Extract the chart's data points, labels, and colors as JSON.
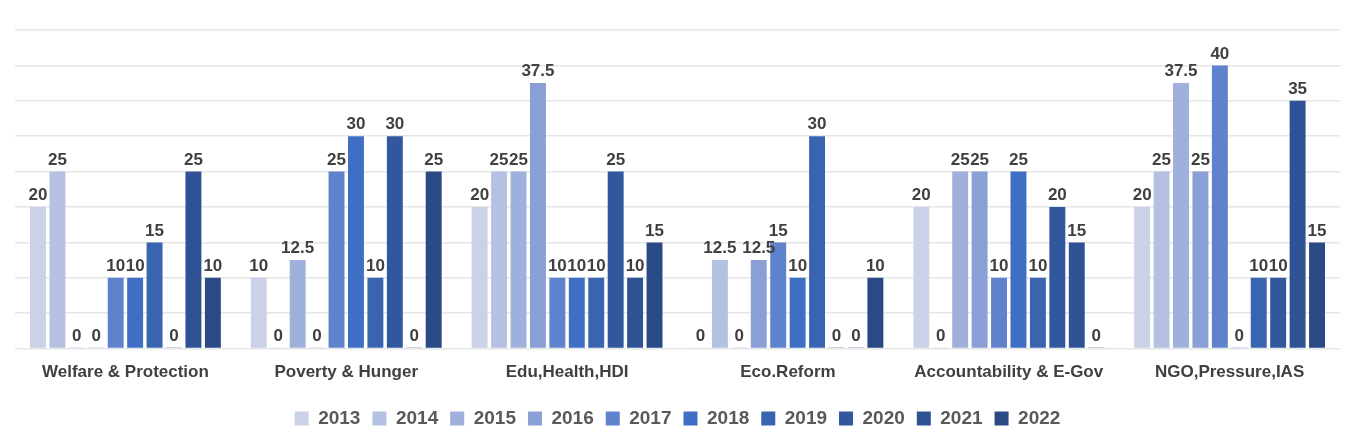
{
  "chart_data": {
    "type": "bar",
    "categories": [
      "Welfare & Protection",
      "Poverty & Hunger",
      "Edu,Health,HDI",
      "Eco.Reform",
      "Accountability & E-Gov",
      "NGO,Pressure,IAS"
    ],
    "series": [
      {
        "name": "2013",
        "color": "#cbd2e8",
        "values": [
          20,
          10,
          20,
          0,
          20,
          20
        ]
      },
      {
        "name": "2014",
        "color": "#b4c1e2",
        "values": [
          25,
          0,
          25,
          12.5,
          0,
          25
        ]
      },
      {
        "name": "2015",
        "color": "#9fb0dc",
        "values": [
          0,
          12.5,
          25,
          0,
          25,
          37.5
        ]
      },
      {
        "name": "2016",
        "color": "#8a9fd6",
        "values": [
          0,
          0,
          37.5,
          12.5,
          25,
          25
        ]
      },
      {
        "name": "2017",
        "color": "#5e82cc",
        "values": [
          10,
          25,
          10,
          15,
          10,
          40
        ]
      },
      {
        "name": "2018",
        "color": "#3f6fc4",
        "values": [
          10,
          30,
          10,
          10,
          25,
          0
        ]
      },
      {
        "name": "2019",
        "color": "#3864b0",
        "values": [
          15,
          10,
          10,
          30,
          10,
          10
        ]
      },
      {
        "name": "2020",
        "color": "#31579e",
        "values": [
          0,
          30,
          25,
          0,
          20,
          10
        ]
      },
      {
        "name": "2021",
        "color": "#2e5294",
        "values": [
          25,
          0,
          10,
          0,
          15,
          35
        ]
      },
      {
        "name": "2022",
        "color": "#2a4a85",
        "values": [
          10,
          25,
          15,
          10,
          0,
          15
        ]
      }
    ],
    "ylim": [
      0,
      45
    ],
    "yticks": [
      {
        "value": 0,
        "label": null
      },
      {
        "value": 5,
        "label": null
      },
      {
        "value": 10,
        "label": null
      },
      {
        "value": 15,
        "label": null
      },
      {
        "value": 20,
        "label": null
      },
      {
        "value": 25,
        "label": null
      },
      {
        "value": 30,
        "label": null
      },
      {
        "value": 35,
        "label": null
      },
      {
        "value": 40,
        "label": null
      },
      {
        "value": 45,
        "label": null
      }
    ],
    "grid": "y",
    "legend": "bottom",
    "tick_labels": "x",
    "data_labels": true
  }
}
